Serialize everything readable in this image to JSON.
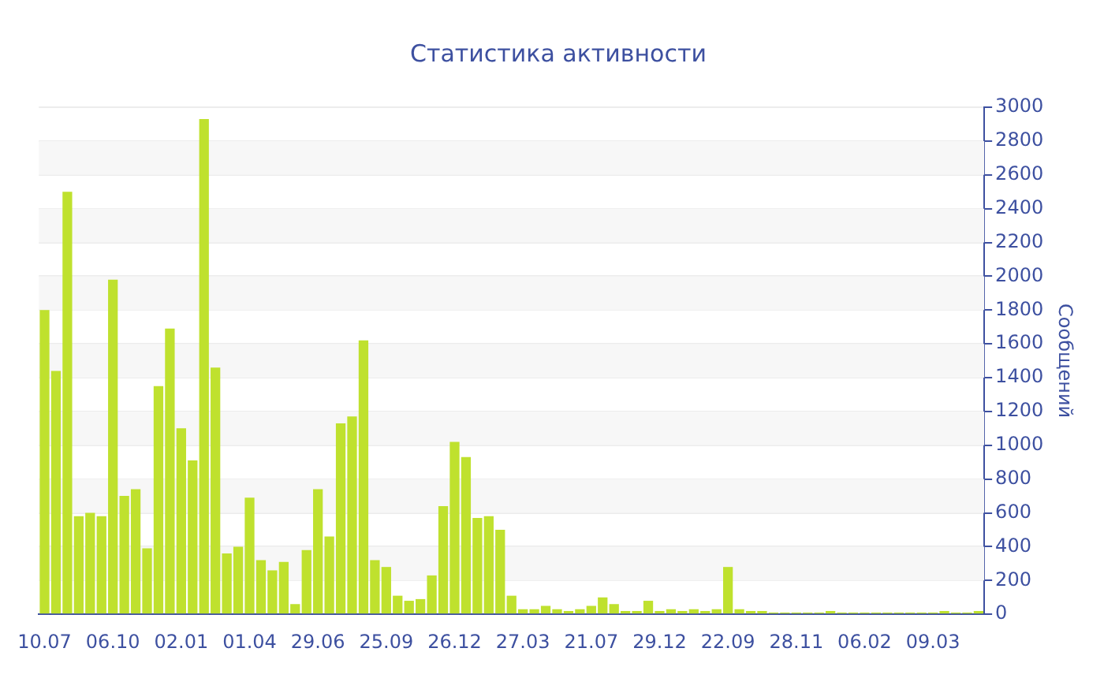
{
  "chart_data": {
    "type": "bar",
    "title": "Статистика активности",
    "ylabel": "Сообщений",
    "color": "#bfe12e",
    "categories": [
      "10.07",
      null,
      null,
      null,
      null,
      null,
      "06.10",
      null,
      null,
      null,
      null,
      null,
      "02.01",
      null,
      null,
      null,
      null,
      null,
      "01.04",
      null,
      null,
      null,
      null,
      null,
      "29.06",
      null,
      null,
      null,
      null,
      null,
      "25.09",
      null,
      null,
      null,
      null,
      null,
      "26.12",
      null,
      null,
      null,
      null,
      null,
      "27.03",
      null,
      null,
      null,
      null,
      null,
      "21.07",
      null,
      null,
      null,
      null,
      null,
      "29.12",
      null,
      null,
      null,
      null,
      null,
      "22.09",
      null,
      null,
      null,
      null,
      null,
      "28.11",
      null,
      null,
      null,
      null,
      null,
      "06.02",
      null,
      null,
      null,
      null,
      null,
      "09.03",
      null,
      null,
      null,
      null
    ],
    "values": [
      1800,
      1440,
      2500,
      580,
      600,
      580,
      1980,
      700,
      740,
      390,
      1350,
      1690,
      1100,
      910,
      2930,
      1460,
      360,
      400,
      690,
      320,
      260,
      310,
      60,
      380,
      740,
      460,
      1130,
      1170,
      1620,
      320,
      280,
      110,
      80,
      90,
      230,
      640,
      1020,
      930,
      570,
      580,
      500,
      110,
      30,
      30,
      50,
      30,
      20,
      30,
      50,
      100,
      60,
      20,
      20,
      80,
      20,
      30,
      20,
      30,
      20,
      30,
      280,
      30,
      20,
      20,
      10,
      10,
      10,
      10,
      10,
      20,
      10,
      10,
      10,
      10,
      10,
      10,
      10,
      10,
      10,
      20,
      10,
      10,
      20
    ],
    "ylim": [
      0,
      3000
    ],
    "yticks": [
      0,
      200,
      400,
      600,
      800,
      1000,
      1200,
      1400,
      1600,
      1800,
      2000,
      2200,
      2400,
      2600,
      2800,
      3000
    ],
    "grid": "y"
  }
}
